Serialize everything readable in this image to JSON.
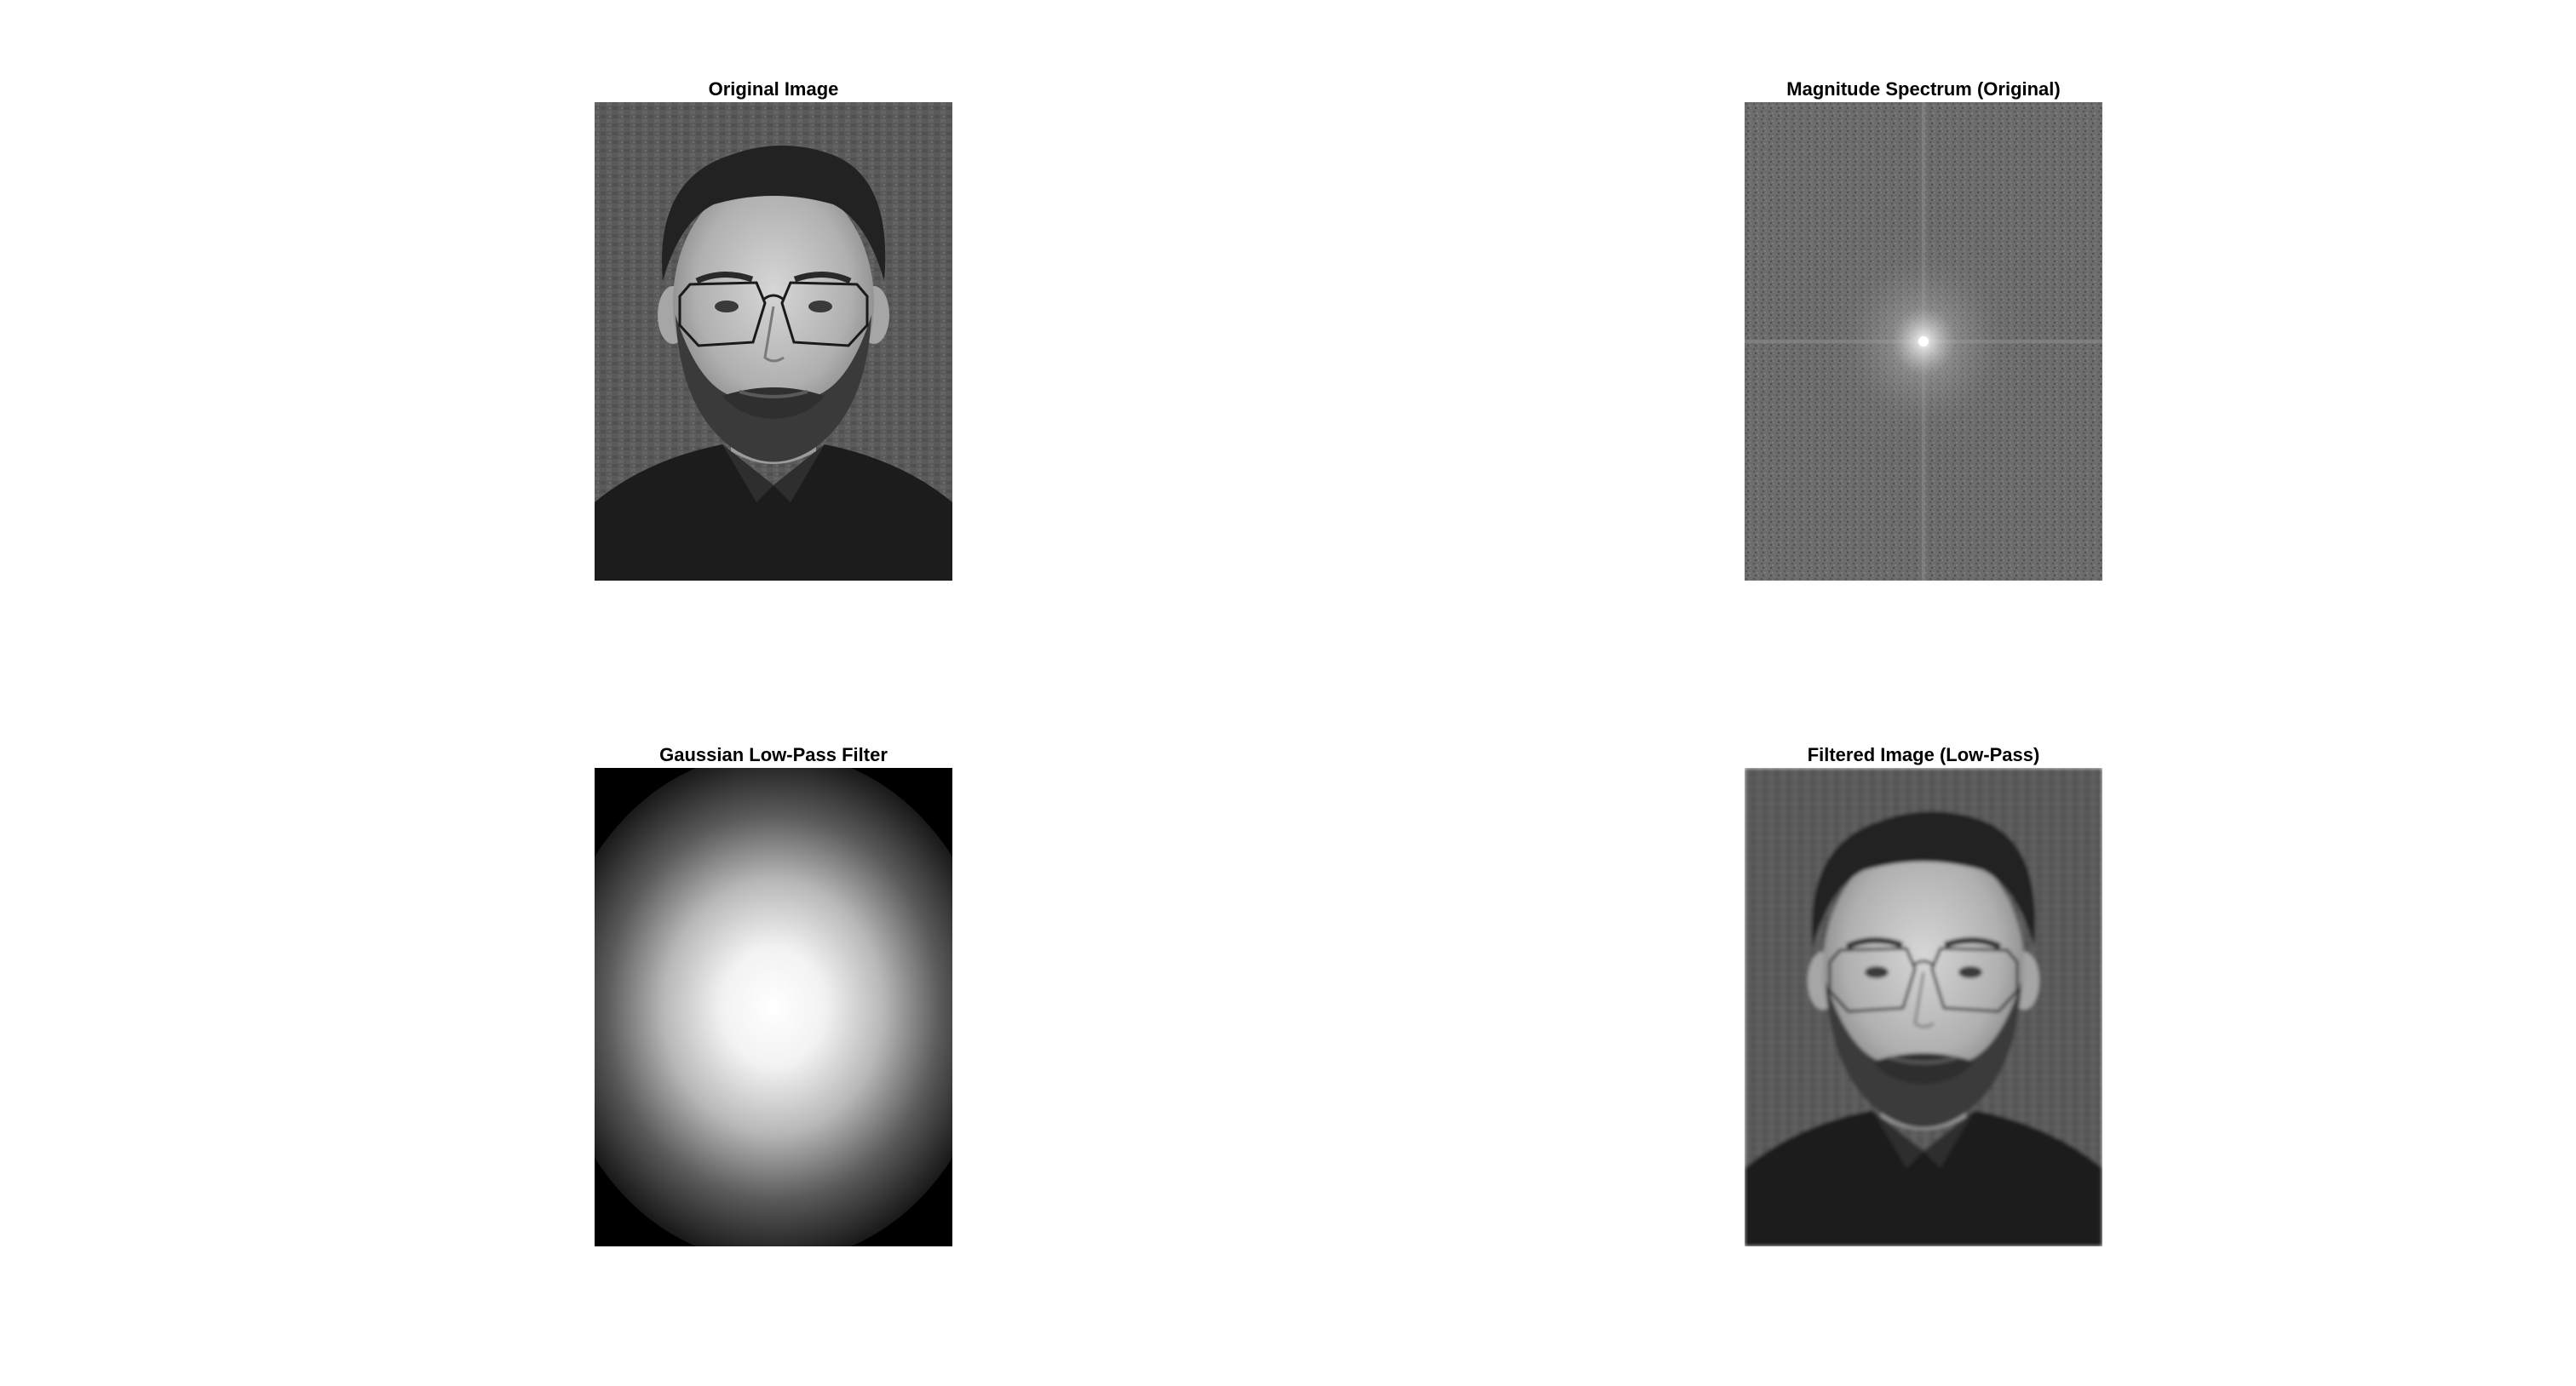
{
  "figure": {
    "panels": [
      {
        "title": "Original Image"
      },
      {
        "title": "Magnitude Spectrum (Original)"
      },
      {
        "title": "Gaussian Low-Pass Filter"
      },
      {
        "title": "Filtered Image (Low-Pass)"
      }
    ]
  },
  "colors": {
    "background": "#ffffff",
    "title_text": "#000000",
    "filter_center": "#ffffff",
    "filter_edge": "#000000"
  }
}
